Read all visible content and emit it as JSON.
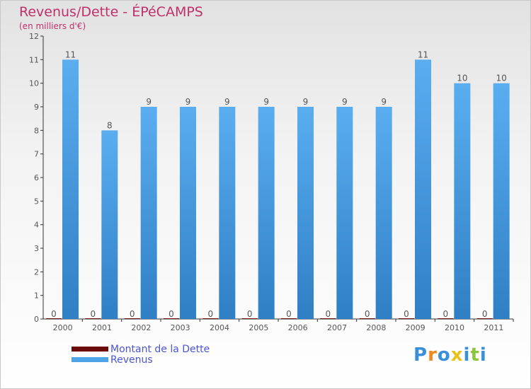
{
  "header": {
    "title": "Revenus/Dette - ÉPéCAMPS",
    "subtitle": "(en milliers d'€)"
  },
  "chart_data": {
    "type": "bar",
    "title": "Revenus/Dette - ÉPéCAMPS",
    "subtitle": "(en milliers d'€)",
    "categories": [
      "2000",
      "2001",
      "2002",
      "2003",
      "2004",
      "2005",
      "2006",
      "2007",
      "2008",
      "2009",
      "2010",
      "2011"
    ],
    "series": [
      {
        "name": "Montant de la Dette",
        "color": "#6b0a0a",
        "values": [
          0,
          0,
          0,
          0,
          0,
          0,
          0,
          0,
          0,
          0,
          0,
          0
        ]
      },
      {
        "name": "Revenus",
        "color": "#4ea3e6",
        "values": [
          11,
          8,
          9,
          9,
          9,
          9,
          9,
          9,
          9,
          11,
          10,
          10
        ]
      }
    ],
    "ylim": [
      0,
      12
    ],
    "yticks": [
      0,
      1,
      2,
      3,
      4,
      5,
      6,
      7,
      8,
      9,
      10,
      11,
      12
    ],
    "grid": false,
    "legend_position": "bottom-left"
  },
  "legend": {
    "items": [
      {
        "label": "Montant de la Dette",
        "color": "#6b0a0a"
      },
      {
        "label": "Revenus",
        "color": "#4ea3e6"
      }
    ]
  },
  "logo": {
    "text": "Proxiti"
  }
}
